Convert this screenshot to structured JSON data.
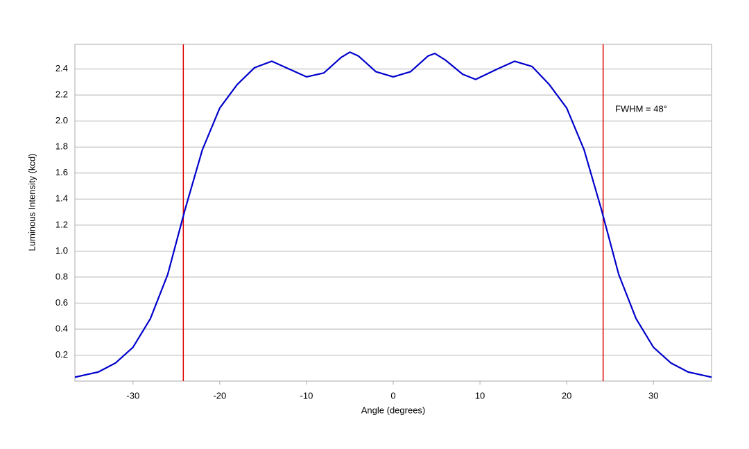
{
  "chart_data": {
    "type": "line",
    "xlabel": "Angle (degrees)",
    "ylabel": "Luminous Intensity (kcd)",
    "x": [
      -36.7,
      -34,
      -32,
      -30,
      -28,
      -26,
      -24,
      -22,
      -20,
      -18,
      -16,
      -14,
      -12,
      -10,
      -8,
      -6,
      -5,
      -4,
      -2,
      0,
      2,
      4,
      4.8,
      6,
      8,
      9.5,
      12,
      14,
      16,
      18,
      20,
      22,
      24,
      26,
      28,
      30,
      32,
      34,
      36.7
    ],
    "series": [
      {
        "color": "#0000cc",
        "values": [
          0.03,
          0.07,
          0.14,
          0.26,
          0.48,
          0.82,
          1.32,
          1.78,
          2.1,
          2.28,
          2.41,
          2.46,
          2.4,
          2.34,
          2.37,
          2.49,
          2.53,
          2.5,
          2.38,
          2.34,
          2.38,
          2.5,
          2.52,
          2.47,
          2.36,
          2.32,
          2.4,
          2.46,
          2.42,
          2.28,
          2.1,
          1.78,
          1.32,
          0.82,
          0.48,
          0.26,
          0.14,
          0.07,
          0.03
        ]
      }
    ],
    "xlim": [
      -36.7,
      36.7
    ],
    "xticks": [
      -30,
      -20,
      -10,
      0,
      10,
      20,
      30
    ],
    "ylim": [
      0,
      2.59
    ],
    "yticks": [
      0.2,
      0.4,
      0.6,
      0.8,
      {
        "value": 1.0,
        "label": "1.0"
      },
      1.2,
      1.4,
      1.6,
      1.8,
      {
        "value": 2.0,
        "label": "2.0"
      },
      2.2,
      2.4
    ],
    "grid": true,
    "vlines": {
      "color": "#dd0000",
      "values": [
        -24.2,
        24.2
      ]
    },
    "annotation": "FWHM = 48°"
  }
}
